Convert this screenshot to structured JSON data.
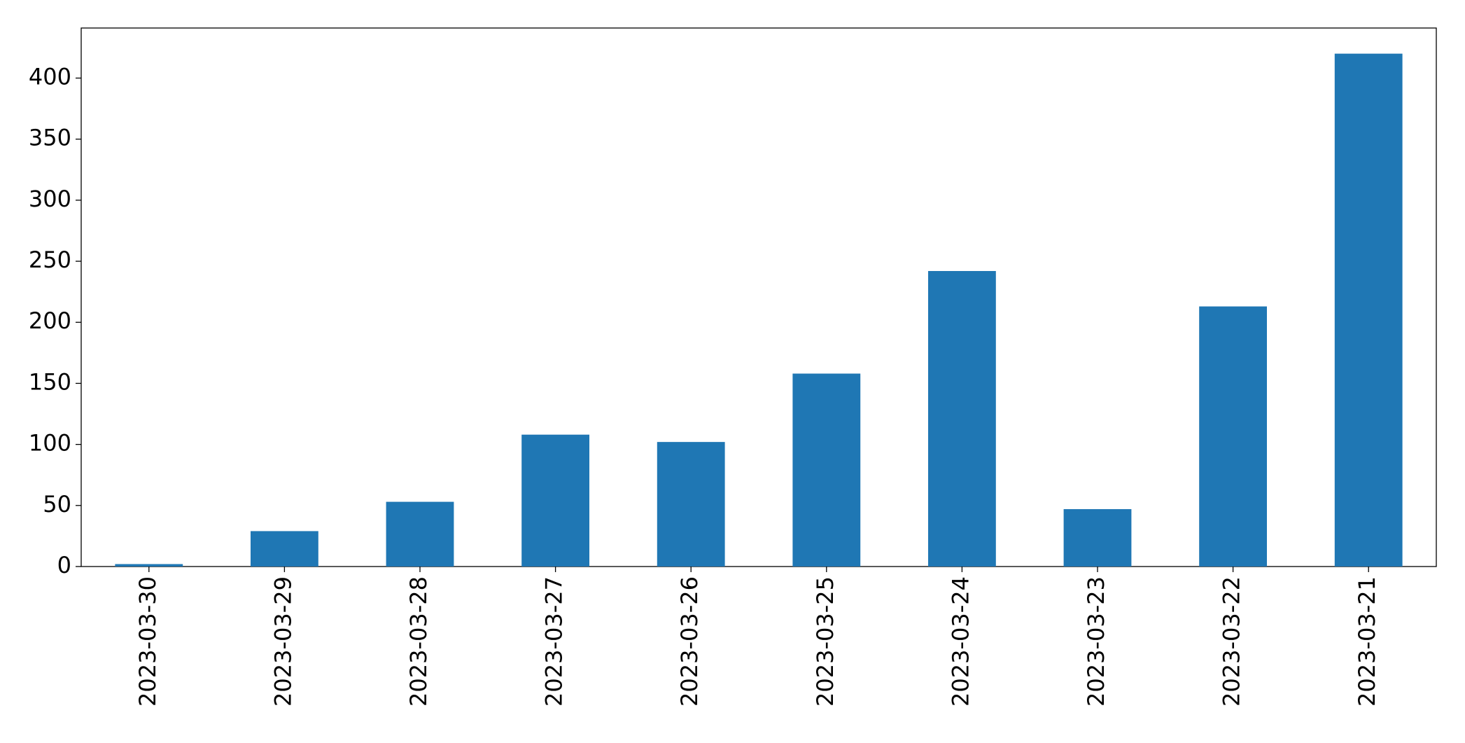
{
  "chart_data": {
    "type": "bar",
    "categories": [
      "2023-03-30",
      "2023-03-29",
      "2023-03-28",
      "2023-03-27",
      "2023-03-26",
      "2023-03-25",
      "2023-03-24",
      "2023-03-23",
      "2023-03-22",
      "2023-03-21"
    ],
    "values": [
      2,
      29,
      53,
      108,
      102,
      158,
      242,
      47,
      213,
      420
    ],
    "color": "#1f77b4",
    "ylim": [
      0,
      441
    ],
    "yticks": [
      0,
      50,
      100,
      150,
      200,
      250,
      300,
      350,
      400
    ],
    "grid": false
  }
}
